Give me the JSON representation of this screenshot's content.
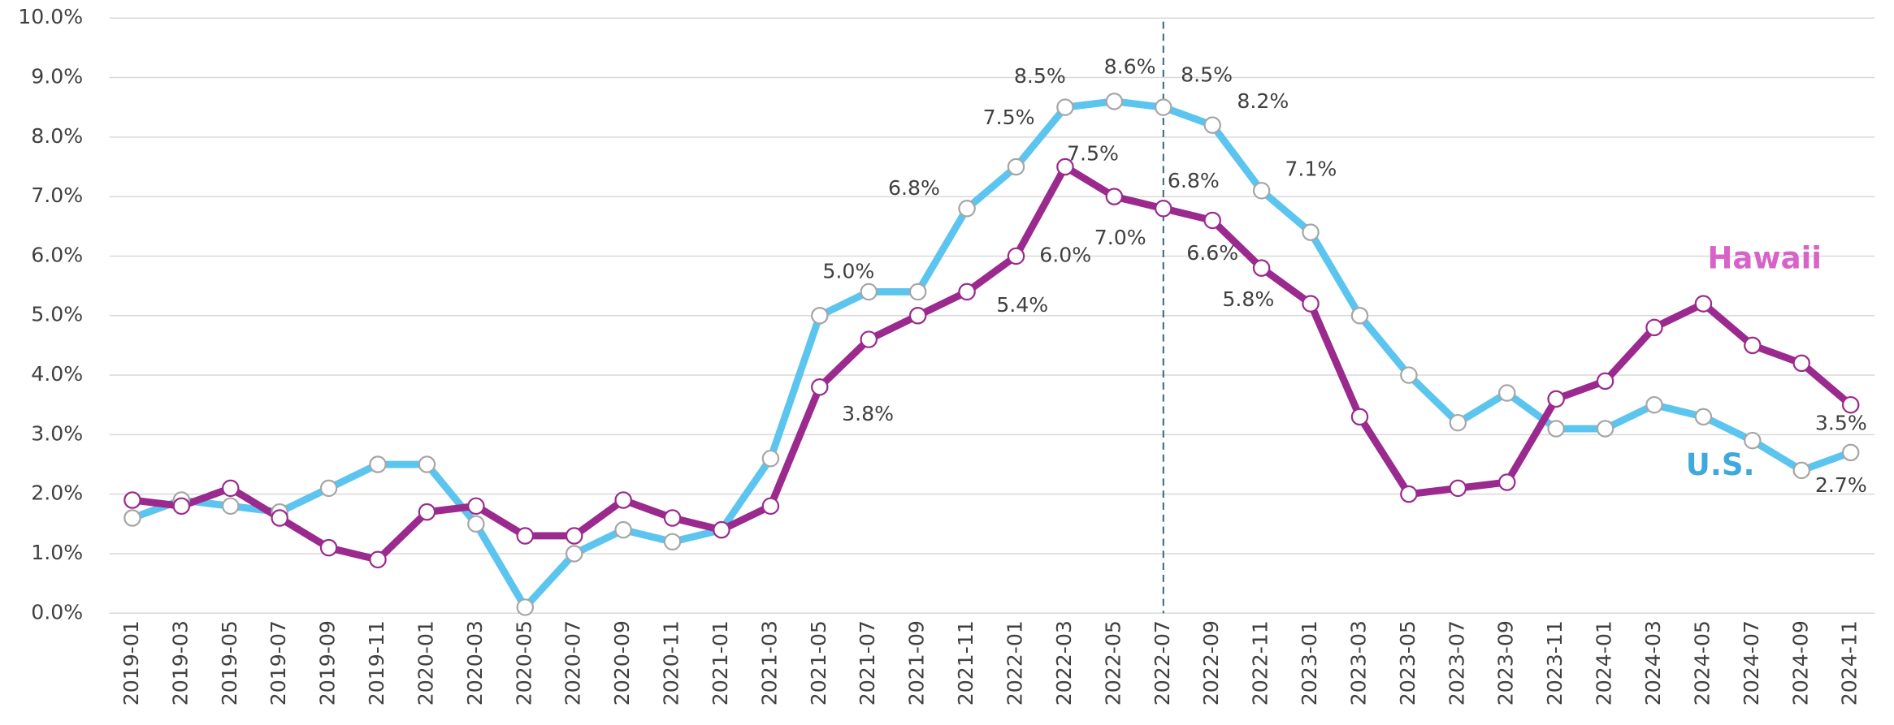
{
  "chart_data": {
    "type": "line",
    "categories": [
      "2019-01",
      "2019-03",
      "2019-05",
      "2019-07",
      "2019-09",
      "2019-11",
      "2020-01",
      "2020-03",
      "2020-05",
      "2020-07",
      "2020-09",
      "2020-11",
      "2021-01",
      "2021-03",
      "2021-05",
      "2021-07",
      "2021-09",
      "2021-11",
      "2022-01",
      "2022-03",
      "2022-05",
      "2022-07",
      "2022-09",
      "2022-11",
      "2023-01",
      "2023-03",
      "2023-05",
      "2023-07",
      "2023-09",
      "2023-11",
      "2024-01",
      "2024-03",
      "2024-05",
      "2024-07",
      "2024-09",
      "2024-11"
    ],
    "series": [
      {
        "name": "U.S.",
        "color": "#5bc5ef",
        "label_color": "#3fa9dd",
        "values": [
          1.6,
          1.9,
          1.8,
          1.7,
          2.1,
          2.5,
          2.5,
          1.5,
          0.1,
          1.0,
          1.4,
          1.2,
          1.4,
          2.6,
          5.0,
          5.4,
          5.4,
          6.8,
          7.5,
          8.5,
          8.6,
          8.5,
          8.2,
          7.1,
          6.4,
          5.0,
          4.0,
          3.2,
          3.7,
          3.1,
          3.1,
          3.5,
          3.3,
          2.9,
          2.4,
          2.7
        ],
        "value_labels": [
          null,
          null,
          null,
          null,
          null,
          null,
          null,
          null,
          null,
          null,
          null,
          null,
          null,
          null,
          "5.0%",
          null,
          null,
          "6.8%",
          "7.5%",
          "8.5%",
          "8.6%",
          "8.5%",
          "8.2%",
          "7.1%",
          null,
          null,
          null,
          null,
          null,
          null,
          null,
          null,
          null,
          null,
          null,
          "2.7%"
        ]
      },
      {
        "name": "Hawaii",
        "color": "#9b2a8f",
        "label_color": "#d863c8",
        "values": [
          1.9,
          1.8,
          2.1,
          1.6,
          1.1,
          0.9,
          1.7,
          1.8,
          1.3,
          1.3,
          1.9,
          1.6,
          1.4,
          1.8,
          3.8,
          4.6,
          5.0,
          5.4,
          6.0,
          7.5,
          7.0,
          6.8,
          6.6,
          5.8,
          5.2,
          3.3,
          2.0,
          2.1,
          2.2,
          3.6,
          3.9,
          4.8,
          5.2,
          4.5,
          4.2,
          3.5
        ],
        "value_labels": [
          null,
          null,
          null,
          null,
          null,
          null,
          null,
          null,
          null,
          null,
          null,
          null,
          null,
          null,
          "3.8%",
          null,
          null,
          "5.4%",
          "6.0%",
          "7.5%",
          "7.0%",
          "6.8%",
          "6.6%",
          "5.8%",
          null,
          null,
          null,
          null,
          null,
          null,
          null,
          null,
          null,
          null,
          null,
          "3.5%"
        ]
      }
    ],
    "ylim": [
      0,
      10
    ],
    "yticks": [
      {
        "value": 0,
        "label": "0.0%"
      },
      {
        "value": 1,
        "label": "1.0%"
      },
      {
        "value": 2,
        "label": "2.0%"
      },
      {
        "value": 3,
        "label": "3.0%"
      },
      {
        "value": 4,
        "label": "4.0%"
      },
      {
        "value": 5,
        "label": "5.0%"
      },
      {
        "value": 6,
        "label": "6.0%"
      },
      {
        "value": 7,
        "label": "7.0%"
      },
      {
        "value": 8,
        "label": "8.0%"
      },
      {
        "value": 9,
        "label": "9.0%"
      },
      {
        "value": 10,
        "label": "10.0%"
      }
    ],
    "grid": true,
    "reference_line": "2022-07"
  }
}
